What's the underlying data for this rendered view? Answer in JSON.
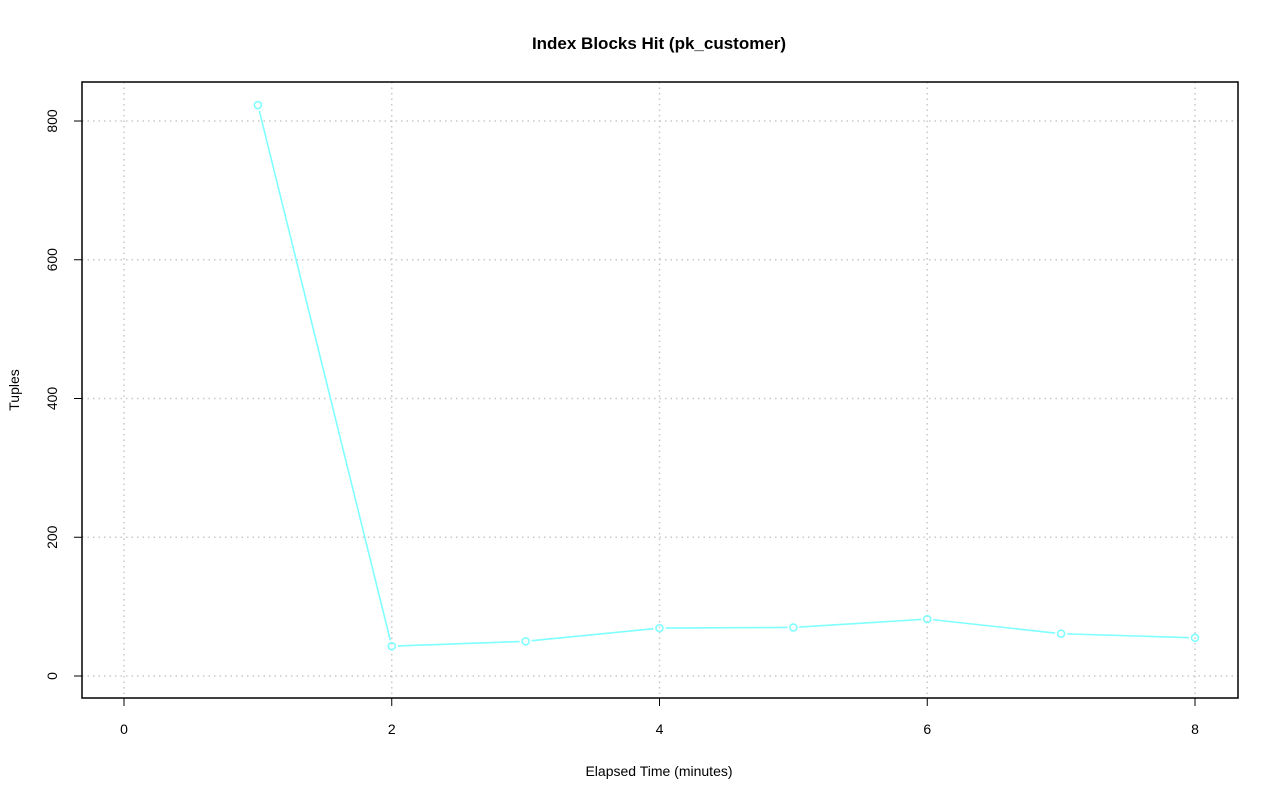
{
  "chart_data": {
    "type": "line",
    "title": "Index Blocks Hit (pk_customer)",
    "xlabel": "Elapsed Time (minutes)",
    "ylabel": "Tuples",
    "xlim": [
      0,
      8
    ],
    "ylim": [
      0,
      800
    ],
    "x_ticks": [
      "0",
      "2",
      "4",
      "6",
      "8"
    ],
    "y_ticks": [
      "0",
      "200",
      "400",
      "600",
      "800"
    ],
    "grid": true,
    "series": [
      {
        "color": "#7fffff",
        "x": [
          1,
          2,
          3,
          4,
          5,
          6,
          7,
          8
        ],
        "values": [
          823,
          43,
          50,
          69,
          70,
          82,
          61,
          55
        ]
      }
    ]
  }
}
